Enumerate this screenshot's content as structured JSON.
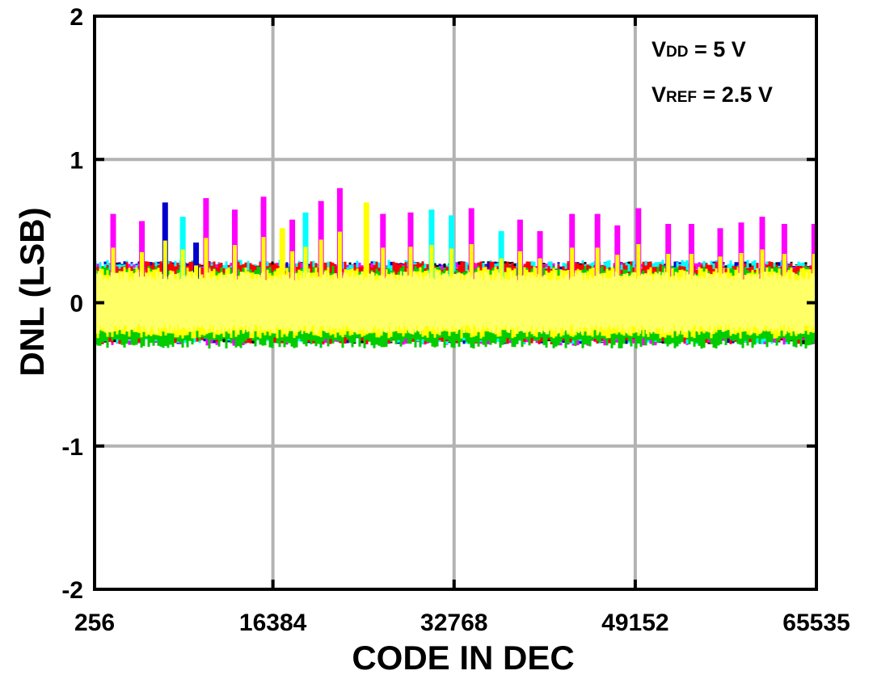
{
  "chart_data": {
    "type": "line",
    "xlabel": "CODE IN DEC",
    "ylabel": "DNL (LSB)",
    "xlim": [
      256,
      65535
    ],
    "ylim": [
      -2,
      2
    ],
    "x_ticks": [
      "256",
      "16384",
      "32768",
      "49152",
      "65535"
    ],
    "x_tick_values": [
      256,
      16384,
      32768,
      49152,
      65535
    ],
    "y_ticks": [
      "2",
      "1",
      "0",
      "-1",
      "-2"
    ],
    "y_tick_values": [
      2,
      1,
      0,
      -1,
      -2
    ],
    "grid": true,
    "annotations": [
      {
        "main": "V",
        "sub": "DD",
        "rest": " = 5 V"
      },
      {
        "main": "V",
        "sub": "REF",
        "rest": " = 2.5 V"
      }
    ],
    "series": [
      {
        "color": "#000000",
        "band": [
          -0.29,
          0.29
        ]
      },
      {
        "color": "#0000cc",
        "band": [
          -0.29,
          0.29
        ]
      },
      {
        "color": "#ff00ff",
        "band": [
          -0.3,
          0.28
        ]
      },
      {
        "color": "#00ffff",
        "band": [
          -0.29,
          0.3
        ]
      },
      {
        "color": "#ff0000",
        "band": [
          -0.29,
          0.29
        ]
      },
      {
        "color": "#00cc00",
        "band": [
          -0.32,
          0.26
        ]
      },
      {
        "color": "#ffff00",
        "band": [
          -0.25,
          0.25
        ]
      }
    ],
    "overlay_color": "#ffff66",
    "spikes": [
      {
        "x": 1900,
        "y": 0.62,
        "color": "#ff00ff"
      },
      {
        "x": 4500,
        "y": 0.57,
        "color": "#ff00ff"
      },
      {
        "x": 6600,
        "y": 0.7,
        "color": "#0000cc"
      },
      {
        "x": 8200,
        "y": 0.6,
        "color": "#00ffff"
      },
      {
        "x": 9400,
        "y": 0.42,
        "color": "#0000cc"
      },
      {
        "x": 10300,
        "y": 0.73,
        "color": "#ff00ff"
      },
      {
        "x": 12900,
        "y": 0.65,
        "color": "#ff00ff"
      },
      {
        "x": 15500,
        "y": 0.74,
        "color": "#ff00ff"
      },
      {
        "x": 17200,
        "y": 0.52,
        "color": "#ffff00"
      },
      {
        "x": 18100,
        "y": 0.58,
        "color": "#ff00ff"
      },
      {
        "x": 19300,
        "y": 0.63,
        "color": "#00ffff"
      },
      {
        "x": 20700,
        "y": 0.71,
        "color": "#ff00ff"
      },
      {
        "x": 22400,
        "y": 0.8,
        "color": "#ff00ff"
      },
      {
        "x": 24800,
        "y": 0.7,
        "color": "#ffff00"
      },
      {
        "x": 26300,
        "y": 0.62,
        "color": "#ff00ff"
      },
      {
        "x": 28800,
        "y": 0.63,
        "color": "#ff00ff"
      },
      {
        "x": 30700,
        "y": 0.65,
        "color": "#00ffff"
      },
      {
        "x": 32500,
        "y": 0.61,
        "color": "#00ffff"
      },
      {
        "x": 34300,
        "y": 0.66,
        "color": "#ff00ff"
      },
      {
        "x": 37000,
        "y": 0.5,
        "color": "#00ffff"
      },
      {
        "x": 38700,
        "y": 0.58,
        "color": "#ff00ff"
      },
      {
        "x": 40500,
        "y": 0.5,
        "color": "#ff00ff"
      },
      {
        "x": 43400,
        "y": 0.62,
        "color": "#ff00ff"
      },
      {
        "x": 45700,
        "y": 0.62,
        "color": "#ff00ff"
      },
      {
        "x": 47500,
        "y": 0.54,
        "color": "#ff00ff"
      },
      {
        "x": 49400,
        "y": 0.66,
        "color": "#ff00ff"
      },
      {
        "x": 52100,
        "y": 0.55,
        "color": "#ff00ff"
      },
      {
        "x": 54200,
        "y": 0.55,
        "color": "#ff00ff"
      },
      {
        "x": 56800,
        "y": 0.52,
        "color": "#ff00ff"
      },
      {
        "x": 58700,
        "y": 0.56,
        "color": "#ff00ff"
      },
      {
        "x": 60600,
        "y": 0.6,
        "color": "#ff00ff"
      },
      {
        "x": 62600,
        "y": 0.55,
        "color": "#ff00ff"
      },
      {
        "x": 65300,
        "y": 0.55,
        "color": "#ff00ff"
      }
    ]
  }
}
